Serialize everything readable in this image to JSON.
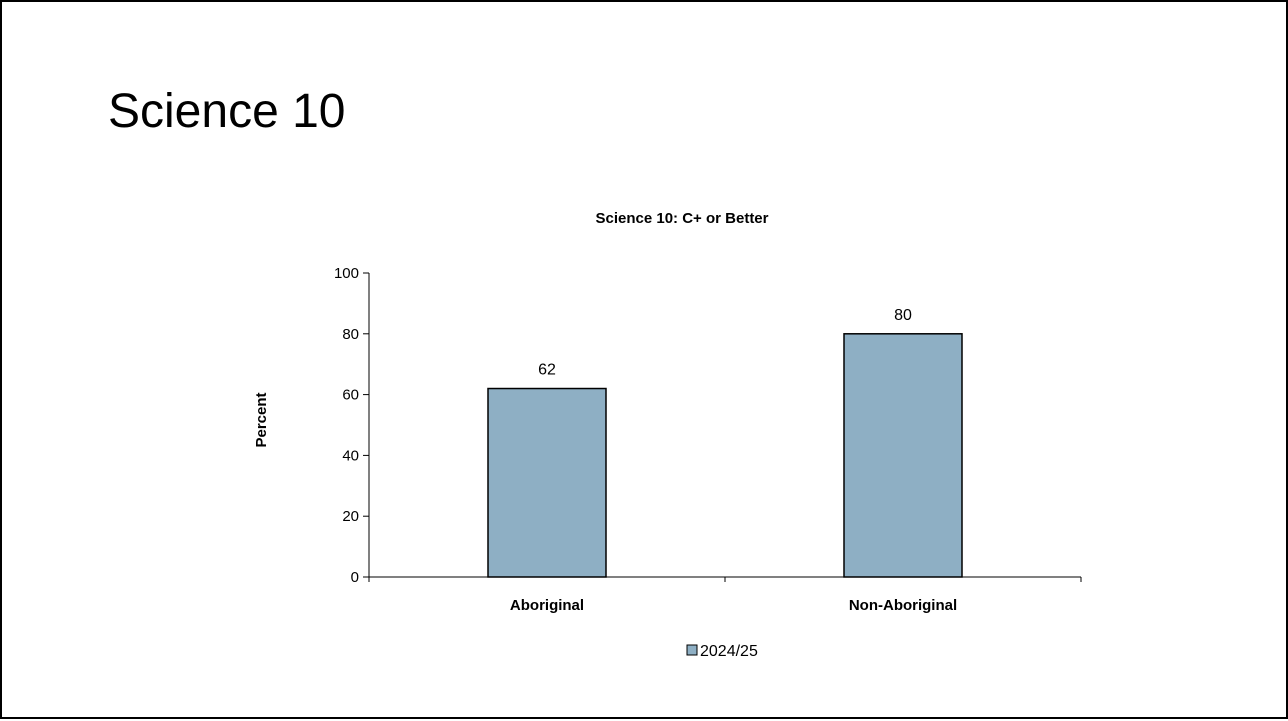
{
  "slide": {
    "title": "Science 10"
  },
  "chart_data": {
    "type": "bar",
    "title": "Science 10: C+ or Better",
    "xlabel": "",
    "ylabel": "Percent",
    "ylim": [
      0,
      100
    ],
    "yticks": [
      0,
      20,
      40,
      60,
      80,
      100
    ],
    "categories": [
      "Aboriginal",
      "Non-Aboriginal"
    ],
    "series": [
      {
        "name": "2024/25",
        "values": [
          62,
          80
        ],
        "color": "#8eafc4"
      }
    ],
    "data_labels": true,
    "legend_position": "bottom",
    "grid": false
  }
}
